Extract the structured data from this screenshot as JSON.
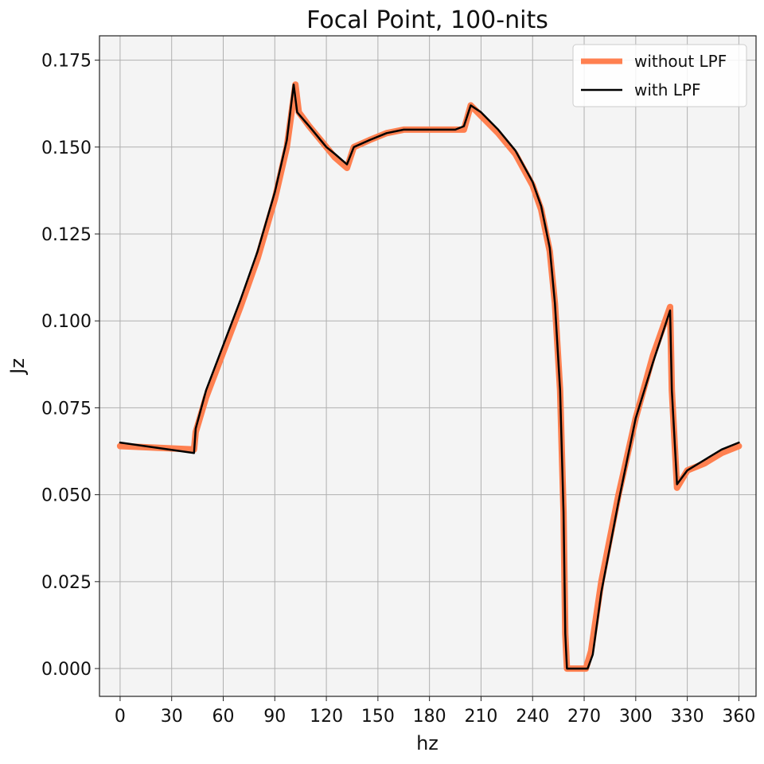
{
  "chart_data": {
    "type": "line",
    "title": "Focal Point,  100-nits",
    "xlabel": "hz",
    "ylabel": "Jz",
    "xlim": [
      -12,
      370
    ],
    "ylim": [
      -0.008,
      0.182
    ],
    "xticks": [
      0,
      30,
      60,
      90,
      120,
      150,
      180,
      210,
      240,
      270,
      300,
      330,
      360
    ],
    "xtick_labels": [
      "0",
      "30",
      "60",
      "90",
      "120",
      "150",
      "180",
      "210",
      "240",
      "270",
      "300",
      "330",
      "360"
    ],
    "yticks": [
      0.0,
      0.025,
      0.05,
      0.075,
      0.1,
      0.125,
      0.15,
      0.175
    ],
    "ytick_labels": [
      "0.000",
      "0.025",
      "0.050",
      "0.075",
      "0.100",
      "0.125",
      "0.150",
      "0.175"
    ],
    "grid": true,
    "legend_position": "top-right",
    "series": [
      {
        "name": "without LPF",
        "color": "#FF8050",
        "x": [
          0,
          43,
          44,
          50,
          60,
          70,
          80,
          90,
          97,
          102,
          104,
          110,
          120,
          125,
          132,
          136,
          145,
          155,
          165,
          175,
          185,
          195,
          200,
          204,
          210,
          220,
          230,
          240,
          245,
          250,
          253,
          256,
          258,
          259,
          260,
          271,
          274,
          280,
          290,
          300,
          310,
          320,
          321,
          324,
          330,
          340,
          350,
          360
        ],
        "y": [
          0.064,
          0.063,
          0.068,
          0.078,
          0.091,
          0.104,
          0.118,
          0.135,
          0.15,
          0.168,
          0.16,
          0.156,
          0.15,
          0.147,
          0.144,
          0.15,
          0.152,
          0.154,
          0.155,
          0.155,
          0.155,
          0.155,
          0.155,
          0.162,
          0.159,
          0.154,
          0.148,
          0.139,
          0.132,
          0.12,
          0.105,
          0.08,
          0.045,
          0.01,
          0.0,
          0.0,
          0.005,
          0.025,
          0.05,
          0.072,
          0.09,
          0.104,
          0.08,
          0.052,
          0.057,
          0.059,
          0.062,
          0.064
        ]
      },
      {
        "name": "with LPF",
        "color": "#000000",
        "x": [
          0,
          43,
          44,
          50,
          60,
          70,
          80,
          90,
          97,
          101,
          103,
          110,
          120,
          125,
          132,
          136,
          145,
          155,
          165,
          175,
          185,
          195,
          200,
          204,
          210,
          220,
          230,
          240,
          245,
          250,
          253,
          256,
          258,
          259,
          260,
          272,
          275,
          280,
          290,
          300,
          310,
          320,
          321,
          324,
          330,
          340,
          350,
          360
        ],
        "y": [
          0.065,
          0.062,
          0.069,
          0.08,
          0.093,
          0.106,
          0.12,
          0.137,
          0.152,
          0.168,
          0.16,
          0.156,
          0.15,
          0.148,
          0.145,
          0.15,
          0.152,
          0.154,
          0.155,
          0.155,
          0.155,
          0.155,
          0.156,
          0.162,
          0.16,
          0.155,
          0.149,
          0.14,
          0.133,
          0.121,
          0.105,
          0.08,
          0.045,
          0.01,
          0.0,
          0.0,
          0.004,
          0.022,
          0.048,
          0.072,
          0.088,
          0.103,
          0.08,
          0.053,
          0.057,
          0.06,
          0.063,
          0.065
        ]
      }
    ]
  }
}
